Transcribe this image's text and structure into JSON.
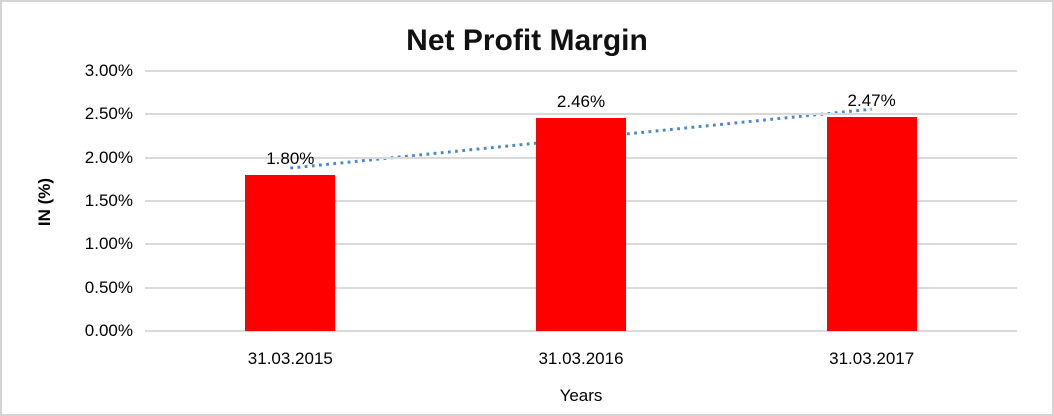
{
  "chart_data": {
    "type": "bar",
    "title": "Net Profit Margin",
    "categories": [
      "31.03.2015",
      "31.03.2016",
      "31.03.2017"
    ],
    "values": [
      1.8,
      2.46,
      2.47
    ],
    "data_labels": [
      "1.80%",
      "2.46%",
      "2.47%"
    ],
    "xlabel": "Years",
    "ylabel": "IN (%)",
    "ylim": [
      0,
      3
    ],
    "ytick_step": 0.5,
    "ytick_labels": [
      "0.00%",
      "0.50%",
      "1.00%",
      "1.50%",
      "2.00%",
      "2.50%",
      "3.00%"
    ],
    "grid": true,
    "legend_position": "none",
    "bar_color": "#ff0000",
    "gridline_color": "#d9d9d9",
    "text_color": "#000000",
    "title_color": "#111111",
    "frame_color": "#d3d3d3",
    "trendline": {
      "type": "linear",
      "style": "dotted",
      "color": "#4e87c7",
      "start_pct": 1.88,
      "end_pct": 2.56
    }
  }
}
